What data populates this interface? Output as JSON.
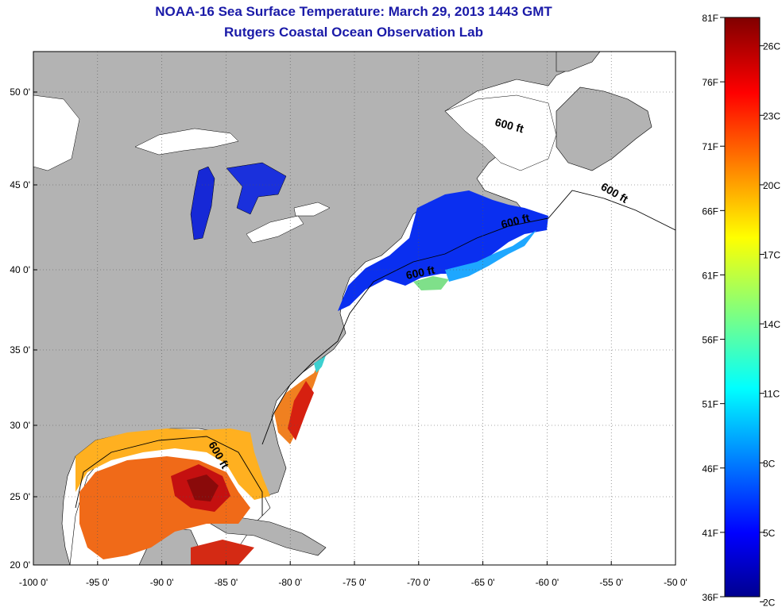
{
  "title": "NOAA-16 Sea Surface Temperature:  March 29, 2013 1443 GMT",
  "subtitle": "Rutgers Coastal Ocean Observation Lab",
  "x_ticks": [
    "-100 0'",
    "-95 0'",
    "-90 0'",
    "-85 0'",
    "-80 0'",
    "-75 0'",
    "-70 0'",
    "-65 0'",
    "-60 0'",
    "-55 0'",
    "-50 0'"
  ],
  "y_ticks": [
    "50 0'",
    "45 0'",
    "40 0'",
    "35 0'",
    "30 0'",
    "25 0'",
    "20 0'"
  ],
  "contour_labels": [
    "600 ft",
    "600 ft",
    "600 ft",
    "600 ft",
    "600 ft"
  ],
  "colorbar": {
    "f_labels": [
      "81F",
      "76F",
      "71F",
      "66F",
      "61F",
      "56F",
      "51F",
      "46F",
      "41F",
      "36F"
    ],
    "c_labels": [
      "26C",
      "23C",
      "20C",
      "17C",
      "14C",
      "11C",
      "8C",
      "5C",
      "2C"
    ]
  },
  "colors": {
    "land": "#b3b3b3",
    "ocean": "#ffffff",
    "title": "#1a1aa8",
    "grid": "#555555"
  }
}
